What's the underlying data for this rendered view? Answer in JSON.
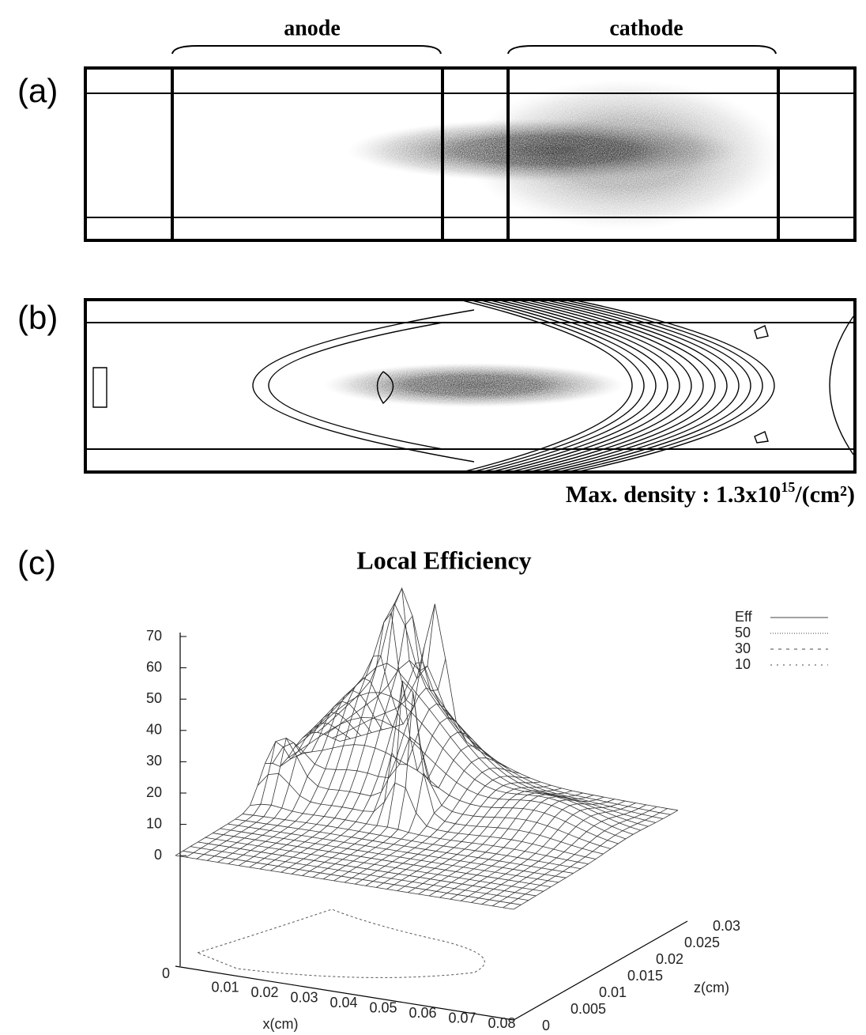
{
  "panel_a": {
    "label": "(a)",
    "anode": "anode",
    "cathode": "cathode"
  },
  "panel_b": {
    "label": "(b)",
    "caption": {
      "text": "Max. density : 1.3x10",
      "exponent": "15",
      "unit": "/(cm²)"
    }
  },
  "panel_c": {
    "label": "(c)",
    "title": "Local Efficiency",
    "vertical_ticks": [
      70,
      60,
      50,
      40,
      30,
      20,
      10,
      0
    ],
    "x_ticks": [
      0,
      0.01,
      0.02,
      0.03,
      0.04,
      0.05,
      0.06,
      0.07,
      0.08
    ],
    "x_label": "x(cm)",
    "z_ticks": [
      0,
      0.005,
      0.01,
      0.015,
      0.02,
      0.025,
      0.03
    ],
    "z_label": "z(cm)",
    "legend": [
      "Eff",
      50,
      30,
      10
    ]
  }
}
